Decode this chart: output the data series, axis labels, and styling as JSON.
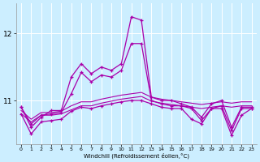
{
  "xlabel": "Windchill (Refroidissement éolien,°C)",
  "bg_color": "#cceeff",
  "grid_color": "#ffffff",
  "line_color": "#aa00aa",
  "x": [
    0,
    1,
    2,
    3,
    4,
    5,
    6,
    7,
    8,
    9,
    10,
    11,
    12,
    13,
    14,
    15,
    16,
    17,
    18,
    19,
    20,
    21,
    22,
    23
  ],
  "series_spike": [
    10.9,
    10.6,
    10.75,
    10.85,
    10.85,
    11.35,
    11.55,
    11.4,
    11.5,
    11.45,
    11.55,
    12.25,
    12.2,
    11.05,
    11.0,
    11.0,
    10.95,
    10.9,
    10.75,
    10.95,
    11.0,
    10.6,
    10.9,
    10.9
  ],
  "series_mid1": [
    10.9,
    10.65,
    10.78,
    10.8,
    10.82,
    11.1,
    11.42,
    11.28,
    11.38,
    11.35,
    11.45,
    11.85,
    11.85,
    11.0,
    10.95,
    10.92,
    10.92,
    10.88,
    10.7,
    10.88,
    10.92,
    10.55,
    10.88,
    10.88
  ],
  "series_flat1": [
    10.85,
    10.72,
    10.82,
    10.82,
    10.84,
    10.92,
    10.98,
    10.98,
    11.02,
    11.05,
    11.08,
    11.1,
    11.12,
    11.05,
    11.02,
    11.0,
    10.98,
    10.96,
    10.94,
    10.96,
    10.98,
    10.96,
    10.98,
    10.98
  ],
  "series_flat2": [
    10.8,
    10.68,
    10.78,
    10.78,
    10.8,
    10.86,
    10.92,
    10.92,
    10.96,
    10.99,
    11.02,
    11.04,
    11.06,
    10.99,
    10.96,
    10.94,
    10.92,
    10.9,
    10.88,
    10.9,
    10.92,
    10.9,
    10.92,
    10.92
  ],
  "series_low": [
    10.8,
    10.5,
    10.68,
    10.7,
    10.72,
    10.84,
    10.9,
    10.88,
    10.92,
    10.95,
    10.98,
    11.0,
    11.0,
    10.95,
    10.9,
    10.88,
    10.88,
    10.72,
    10.65,
    10.88,
    10.88,
    10.48,
    10.78,
    10.88
  ],
  "ylim_low": 10.35,
  "ylim_high": 12.45,
  "ytick_11": 11,
  "ytick_12": 12
}
